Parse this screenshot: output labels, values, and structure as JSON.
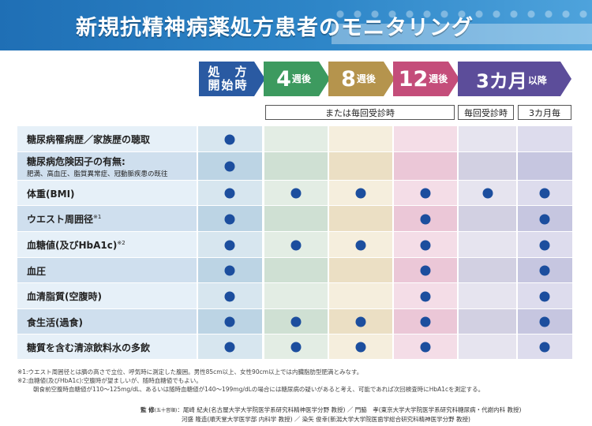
{
  "header": {
    "title": "新規抗精神病薬処方患者のモニタリング"
  },
  "timeline": {
    "start": "処　方\n開始時",
    "w4_num": "4",
    "w4_unit": "週後",
    "w8_num": "8",
    "w8_unit": "週後",
    "w12_num": "12",
    "w12_unit": "週後",
    "m3_num": "3カ月",
    "m3_unit": "以降"
  },
  "sublabels": {
    "visit_or": "または毎回受診時",
    "every_visit": "毎回受診時",
    "every_3m": "3カ月毎"
  },
  "rows": [
    {
      "label": "糖尿病罹病歴／家族歴の聴取",
      "sub": "",
      "sup": "",
      "marks": [
        1,
        0,
        0,
        0,
        0,
        0
      ]
    },
    {
      "label": "糖尿病危険因子の有無:",
      "sub": "肥満、高血圧、脂質異常症、冠動脈疾患の既往",
      "sup": "",
      "marks": [
        1,
        0,
        0,
        0,
        0,
        0
      ]
    },
    {
      "label": "体重(BMI)",
      "sub": "",
      "sup": "",
      "marks": [
        1,
        1,
        1,
        1,
        1,
        1
      ]
    },
    {
      "label": "ウエスト周囲径",
      "sub": "",
      "sup": "※1",
      "marks": [
        1,
        0,
        0,
        1,
        0,
        1
      ]
    },
    {
      "label": "血糖値(及びHbA1c)",
      "sub": "",
      "sup": "※2",
      "marks": [
        1,
        1,
        1,
        1,
        0,
        1
      ]
    },
    {
      "label": "血圧",
      "sub": "",
      "sup": "",
      "marks": [
        1,
        0,
        0,
        1,
        0,
        1
      ]
    },
    {
      "label": "血清脂質(空腹時)",
      "sub": "",
      "sup": "",
      "marks": [
        1,
        0,
        0,
        1,
        0,
        1
      ]
    },
    {
      "label": "食生活(過食)",
      "sub": "",
      "sup": "",
      "marks": [
        1,
        1,
        1,
        1,
        0,
        1
      ]
    },
    {
      "label": "糖質を含む清涼飲料水の多飲",
      "sub": "",
      "sup": "",
      "marks": [
        1,
        1,
        1,
        1,
        0,
        1
      ]
    }
  ],
  "colors": {
    "dot": "#1c4e9e",
    "start": "#2a5aa2",
    "w4": "#3d9a5f",
    "w8": "#b5944d",
    "w12": "#c44d7a",
    "m3": "#5c4d9a"
  },
  "notes": {
    "n1": "※1:ウエスト周囲径とは臍の高さで立位、呼気時に測定した腹囲。男性85cm以上、女性90cm以上では内臓脂肪型肥満とみなす。",
    "n2": "※2:血糖値(及びHbA1c):空腹時が望ましいが、随時血糖値でもよい。",
    "n3": "朝食前空腹時血糖値が110〜125mg/dL、あるいは随時血糖値が140〜199mg/dLの場合には糖尿病の疑いがあると考え、可能であれば次回検査時にHbA1cを測定する。"
  },
  "supervision": {
    "heading": "監 修",
    "order": "(五十音順)",
    "line1": "尾崎 紀夫(名古屋大学大学院医学系研究科精神医学分野 教授) ／ 門脇　孝(東京大学大学院医学系研究科糖尿病・代謝内科 教授)",
    "line2": "河盛 隆造(順天堂大学医学部 内科学 教授) ／ 染矢 俊幸(新潟大学大学院医歯学総合研究科精神医学分野 教授)"
  }
}
